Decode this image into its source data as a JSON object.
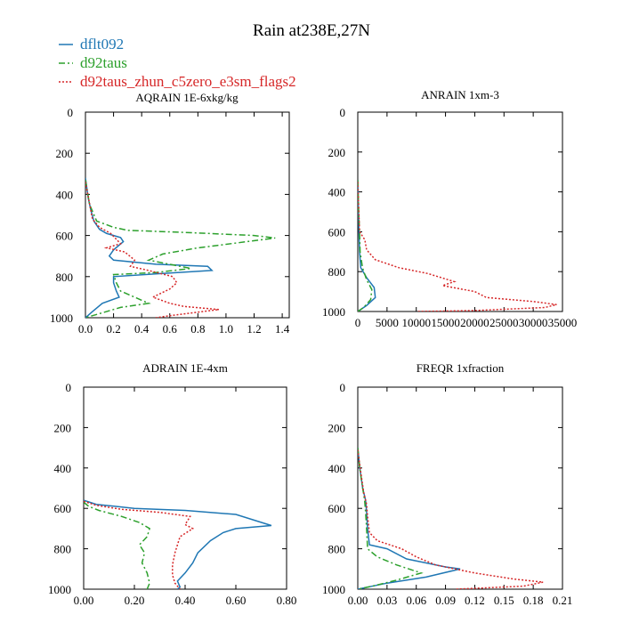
{
  "suptitle": "Rain at238E,27N",
  "legend": [
    {
      "label": "dflt092",
      "color": "#1f77b4",
      "dash": "solid"
    },
    {
      "label": "d92taus",
      "color": "#2ca02c",
      "dash": "dashdot"
    },
    {
      "label": "d92taus_zhun_c5zero_e3sm_flags2",
      "color": "#d62728",
      "dash": "dotted"
    }
  ],
  "chart_data": [
    {
      "type": "line",
      "title": "AQRAIN 1E-6xkg/kg",
      "xlabel": "",
      "ylabel": "",
      "xlim": [
        0,
        1.45
      ],
      "ylim": [
        1000,
        0
      ],
      "xticks": [
        "0.0",
        "0.2",
        "0.4",
        "0.6",
        "0.8",
        "1.0",
        "1.2",
        "1.4"
      ],
      "xtick_values": [
        0,
        0.2,
        0.4,
        0.6,
        0.8,
        1.0,
        1.2,
        1.4
      ],
      "yticks": [
        "0",
        "200",
        "400",
        "600",
        "800",
        "1000"
      ],
      "ytick_values": [
        0,
        200,
        400,
        600,
        800,
        1000
      ],
      "series": [
        {
          "name": "dflt092",
          "points": [
            [
              0,
              320
            ],
            [
              0.02,
              420
            ],
            [
              0.04,
              480
            ],
            [
              0.06,
              530
            ],
            [
              0.1,
              570
            ],
            [
              0.15,
              590
            ],
            [
              0.25,
              610
            ],
            [
              0.27,
              630
            ],
            [
              0.2,
              670
            ],
            [
              0.17,
              700
            ],
            [
              0.2,
              720
            ],
            [
              0.5,
              740
            ],
            [
              0.87,
              750
            ],
            [
              0.9,
              770
            ],
            [
              0.55,
              785
            ],
            [
              0.2,
              800
            ],
            [
              0.2,
              830
            ],
            [
              0.22,
              870
            ],
            [
              0.24,
              900
            ],
            [
              0.12,
              930
            ],
            [
              0.05,
              970
            ],
            [
              0,
              1000
            ]
          ]
        },
        {
          "name": "d92taus",
          "points": [
            [
              0,
              330
            ],
            [
              0.03,
              450
            ],
            [
              0.08,
              530
            ],
            [
              0.2,
              560
            ],
            [
              0.3,
              575
            ],
            [
              0.7,
              585
            ],
            [
              1.2,
              600
            ],
            [
              1.35,
              612
            ],
            [
              1.15,
              630
            ],
            [
              0.8,
              660
            ],
            [
              0.55,
              690
            ],
            [
              0.45,
              720
            ],
            [
              0.75,
              760
            ],
            [
              0.5,
              780
            ],
            [
              0.2,
              790
            ],
            [
              0.22,
              830
            ],
            [
              0.25,
              870
            ],
            [
              0.45,
              930
            ],
            [
              0.25,
              950
            ],
            [
              0.05,
              990
            ],
            [
              0,
              1000
            ]
          ]
        },
        {
          "name": "d92taus_zhun_c5zero_e3sm_flags2",
          "points": [
            [
              0,
              340
            ],
            [
              0.05,
              520
            ],
            [
              0.1,
              560
            ],
            [
              0.18,
              590
            ],
            [
              0.25,
              640
            ],
            [
              0.15,
              660
            ],
            [
              0.28,
              680
            ],
            [
              0.35,
              720
            ],
            [
              0.32,
              750
            ],
            [
              0.45,
              770
            ],
            [
              0.62,
              800
            ],
            [
              0.65,
              830
            ],
            [
              0.6,
              860
            ],
            [
              0.48,
              900
            ],
            [
              0.6,
              930
            ],
            [
              0.7,
              945
            ],
            [
              0.95,
              960
            ],
            [
              0.6,
              990
            ],
            [
              0.5,
              1000
            ]
          ]
        }
      ]
    },
    {
      "type": "line",
      "title": "ANRAIN 1xm-3",
      "xlabel": "",
      "ylabel": "",
      "xlim": [
        0,
        35000
      ],
      "ylim": [
        1000,
        0
      ],
      "xticks": [
        "0",
        "5000",
        "10000",
        "15000",
        "20000",
        "25000",
        "30000",
        "35000"
      ],
      "xtick_values": [
        0,
        5000,
        10000,
        15000,
        20000,
        25000,
        30000,
        35000
      ],
      "yticks": [
        "0",
        "200",
        "400",
        "600",
        "800",
        "1000"
      ],
      "ytick_values": [
        0,
        200,
        400,
        600,
        800,
        1000
      ],
      "series": [
        {
          "name": "dflt092",
          "points": [
            [
              0,
              340
            ],
            [
              100,
              500
            ],
            [
              200,
              600
            ],
            [
              300,
              700
            ],
            [
              500,
              780
            ],
            [
              1500,
              830
            ],
            [
              2800,
              880
            ],
            [
              3000,
              930
            ],
            [
              1500,
              970
            ],
            [
              0,
              1000
            ]
          ]
        },
        {
          "name": "d92taus",
          "points": [
            [
              0,
              340
            ],
            [
              150,
              500
            ],
            [
              300,
              600
            ],
            [
              400,
              700
            ],
            [
              800,
              780
            ],
            [
              1500,
              840
            ],
            [
              2400,
              890
            ],
            [
              2200,
              940
            ],
            [
              1000,
              980
            ],
            [
              0,
              1000
            ]
          ]
        },
        {
          "name": "d92taus_zhun_c5zero_e3sm_flags2",
          "points": [
            [
              0,
              350
            ],
            [
              300,
              600
            ],
            [
              1200,
              640
            ],
            [
              1500,
              690
            ],
            [
              3000,
              740
            ],
            [
              7000,
              780
            ],
            [
              12000,
              810
            ],
            [
              16500,
              850
            ],
            [
              14500,
              870
            ],
            [
              20000,
              900
            ],
            [
              22000,
              930
            ],
            [
              30000,
              950
            ],
            [
              34000,
              965
            ],
            [
              32000,
              980
            ],
            [
              20000,
              995
            ],
            [
              10000,
              1000
            ]
          ]
        }
      ]
    },
    {
      "type": "line",
      "title": "ADRAIN 1E-4xm",
      "xlabel": "",
      "ylabel": "",
      "xlim": [
        0,
        0.8
      ],
      "ylim": [
        1000,
        0
      ],
      "xticks": [
        "0.00",
        "0.20",
        "0.40",
        "0.60",
        "0.80"
      ],
      "xtick_values": [
        0,
        0.2,
        0.4,
        0.6,
        0.8
      ],
      "yticks": [
        "0",
        "200",
        "400",
        "600",
        "800",
        "1000"
      ],
      "ytick_values": [
        0,
        200,
        400,
        600,
        800,
        1000
      ],
      "series": [
        {
          "name": "dflt092",
          "points": [
            [
              0,
              560
            ],
            [
              0.05,
              580
            ],
            [
              0.2,
              600
            ],
            [
              0.4,
              610
            ],
            [
              0.6,
              630
            ],
            [
              0.74,
              685
            ],
            [
              0.6,
              700
            ],
            [
              0.55,
              720
            ],
            [
              0.5,
              760
            ],
            [
              0.45,
              820
            ],
            [
              0.43,
              870
            ],
            [
              0.4,
              920
            ],
            [
              0.37,
              960
            ],
            [
              0.38,
              990
            ],
            [
              0.37,
              1000
            ]
          ]
        },
        {
          "name": "d92taus",
          "points": [
            [
              0,
              570
            ],
            [
              0.02,
              590
            ],
            [
              0.06,
              610
            ],
            [
              0.15,
              640
            ],
            [
              0.22,
              670
            ],
            [
              0.26,
              700
            ],
            [
              0.25,
              740
            ],
            [
              0.22,
              780
            ],
            [
              0.24,
              820
            ],
            [
              0.23,
              870
            ],
            [
              0.25,
              920
            ],
            [
              0.26,
              970
            ],
            [
              0.25,
              1000
            ]
          ]
        },
        {
          "name": "d92taus_zhun_c5zero_e3sm_flags2",
          "points": [
            [
              0,
              565
            ],
            [
              0.05,
              585
            ],
            [
              0.15,
              605
            ],
            [
              0.3,
              620
            ],
            [
              0.42,
              640
            ],
            [
              0.4,
              680
            ],
            [
              0.43,
              700
            ],
            [
              0.38,
              740
            ],
            [
              0.37,
              780
            ],
            [
              0.36,
              820
            ],
            [
              0.35,
              880
            ],
            [
              0.35,
              930
            ],
            [
              0.36,
              970
            ],
            [
              0.38,
              1000
            ]
          ]
        }
      ]
    },
    {
      "type": "line",
      "title": "FREQR 1xfraction",
      "xlabel": "",
      "ylabel": "",
      "xlim": [
        0,
        0.21
      ],
      "ylim": [
        1000,
        0
      ],
      "xticks": [
        "0.00",
        "0.03",
        "0.06",
        "0.09",
        "0.12",
        "0.15",
        "0.18",
        "0.21"
      ],
      "xtick_values": [
        0,
        0.03,
        0.06,
        0.09,
        0.12,
        0.15,
        0.18,
        0.21
      ],
      "yticks": [
        "0",
        "200",
        "400",
        "600",
        "800",
        "1000"
      ],
      "ytick_values": [
        0,
        200,
        400,
        600,
        800,
        1000
      ],
      "series": [
        {
          "name": "dflt092",
          "points": [
            [
              0,
              300
            ],
            [
              0.002,
              400
            ],
            [
              0.005,
              500
            ],
            [
              0.008,
              560
            ],
            [
              0.009,
              620
            ],
            [
              0.01,
              700
            ],
            [
              0.012,
              780
            ],
            [
              0.03,
              800
            ],
            [
              0.05,
              850
            ],
            [
              0.09,
              890
            ],
            [
              0.105,
              900
            ],
            [
              0.07,
              940
            ],
            [
              0.03,
              970
            ],
            [
              0.01,
              990
            ],
            [
              0,
              1000
            ]
          ]
        },
        {
          "name": "d92taus",
          "points": [
            [
              0,
              300
            ],
            [
              0.002,
              400
            ],
            [
              0.005,
              500
            ],
            [
              0.007,
              560
            ],
            [
              0.008,
              620
            ],
            [
              0.009,
              700
            ],
            [
              0.01,
              800
            ],
            [
              0.02,
              840
            ],
            [
              0.04,
              880
            ],
            [
              0.065,
              920
            ],
            [
              0.04,
              955
            ],
            [
              0.015,
              985
            ],
            [
              0,
              1000
            ]
          ]
        },
        {
          "name": "d92taus_zhun_c5zero_e3sm_flags2",
          "points": [
            [
              0,
              310
            ],
            [
              0.003,
              420
            ],
            [
              0.006,
              520
            ],
            [
              0.009,
              580
            ],
            [
              0.01,
              640
            ],
            [
              0.012,
              720
            ],
            [
              0.02,
              760
            ],
            [
              0.045,
              800
            ],
            [
              0.06,
              840
            ],
            [
              0.08,
              880
            ],
            [
              0.12,
              920
            ],
            [
              0.16,
              950
            ],
            [
              0.19,
              965
            ],
            [
              0.17,
              985
            ],
            [
              0.1,
              1000
            ]
          ]
        }
      ]
    }
  ]
}
